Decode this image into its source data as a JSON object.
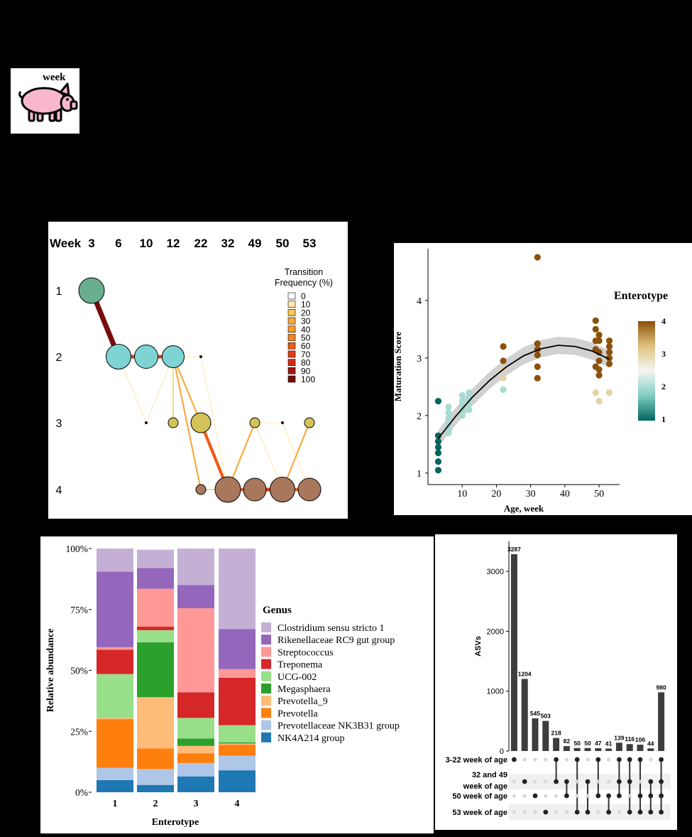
{
  "pig_panel": {
    "label": "week",
    "icon": "pig-icon",
    "fill": "#F9B7CF"
  },
  "chart_data": [
    {
      "type": "network",
      "panel": "enterotype-transition",
      "x_header": "Week",
      "weeks": [
        "3",
        "6",
        "10",
        "12",
        "22",
        "32",
        "49",
        "50",
        "53"
      ],
      "enterotypes": [
        "1",
        "2",
        "3",
        "4"
      ],
      "legend_title": [
        "Transition",
        "Frequency (%)"
      ],
      "legend_levels": [
        "0",
        "10",
        "20",
        "30",
        "40",
        "50",
        "60",
        "70",
        "80",
        "90",
        "100"
      ],
      "legend_colors": [
        "#FFFFFF",
        "#FEE8A9",
        "#FDC94F",
        "#F9A83D",
        "#F89B2A",
        "#F5851F",
        "#EE5A17",
        "#E33D15",
        "#D42A11",
        "#A51510",
        "#7A0B0B"
      ],
      "nodes": [
        {
          "week": "3",
          "enterotype": 1,
          "size": 36
        },
        {
          "week": "6",
          "enterotype": 2,
          "size": 35
        },
        {
          "week": "10",
          "enterotype": 2,
          "size": 33
        },
        {
          "week": "10",
          "enterotype": 3,
          "size": 3
        },
        {
          "week": "12",
          "enterotype": 2,
          "size": 31
        },
        {
          "week": "12",
          "enterotype": 3,
          "size": 14
        },
        {
          "week": "22",
          "enterotype": 2,
          "size": 3
        },
        {
          "week": "22",
          "enterotype": 3,
          "size": 28
        },
        {
          "week": "22",
          "enterotype": 4,
          "size": 14
        },
        {
          "week": "32",
          "enterotype": 4,
          "size": 36
        },
        {
          "week": "49",
          "enterotype": 3,
          "size": 14
        },
        {
          "week": "49",
          "enterotype": 4,
          "size": 32
        },
        {
          "week": "50",
          "enterotype": 3,
          "size": 3
        },
        {
          "week": "50",
          "enterotype": 4,
          "size": 35
        },
        {
          "week": "53",
          "enterotype": 3,
          "size": 14
        },
        {
          "week": "53",
          "enterotype": 4,
          "size": 32
        }
      ],
      "node_colors": {
        "1": "#6AAE90",
        "2": "#7DD4D2",
        "3": "#D3C257",
        "4": "#A8775C"
      },
      "edges": [
        {
          "from": [
            "3",
            1
          ],
          "to": [
            "6",
            2
          ],
          "freq": 100
        },
        {
          "from": [
            "6",
            2
          ],
          "to": [
            "10",
            2
          ],
          "freq": 70
        },
        {
          "from": [
            "6",
            2
          ],
          "to": [
            "10",
            3
          ],
          "freq": 10
        },
        {
          "from": [
            "10",
            2
          ],
          "to": [
            "12",
            2
          ],
          "freq": 70
        },
        {
          "from": [
            "10",
            3
          ],
          "to": [
            "12",
            2
          ],
          "freq": 10
        },
        {
          "from": [
            "12",
            2
          ],
          "to": [
            "22",
            3
          ],
          "freq": 30
        },
        {
          "from": [
            "12",
            2
          ],
          "to": [
            "22",
            4
          ],
          "freq": 30
        },
        {
          "from": [
            "12",
            2
          ],
          "to": [
            "22",
            2
          ],
          "freq": 10
        },
        {
          "from": [
            "12",
            2
          ],
          "to": [
            "12",
            3
          ],
          "freq": 20
        },
        {
          "from": [
            "22",
            2
          ],
          "to": [
            "32",
            4
          ],
          "freq": 10
        },
        {
          "from": [
            "22",
            3
          ],
          "to": [
            "32",
            4
          ],
          "freq": 60
        },
        {
          "from": [
            "22",
            4
          ],
          "to": [
            "32",
            4
          ],
          "freq": 20
        },
        {
          "from": [
            "32",
            4
          ],
          "to": [
            "49",
            3
          ],
          "freq": 30
        },
        {
          "from": [
            "32",
            4
          ],
          "to": [
            "49",
            4
          ],
          "freq": 60
        },
        {
          "from": [
            "49",
            3
          ],
          "to": [
            "50",
            4
          ],
          "freq": 10
        },
        {
          "from": [
            "49",
            3
          ],
          "to": [
            "50",
            3
          ],
          "freq": 10
        },
        {
          "from": [
            "49",
            4
          ],
          "to": [
            "50",
            4
          ],
          "freq": 70
        },
        {
          "from": [
            "50",
            3
          ],
          "to": [
            "53",
            4
          ],
          "freq": 10
        },
        {
          "from": [
            "50",
            4
          ],
          "to": [
            "53",
            3
          ],
          "freq": 30
        },
        {
          "from": [
            "50",
            4
          ],
          "to": [
            "53",
            4
          ],
          "freq": 60
        }
      ]
    },
    {
      "type": "scatter",
      "panel": "maturation",
      "xlabel": "Age, week",
      "ylabel": "Maturation Score",
      "xlim": [
        0,
        56
      ],
      "ylim": [
        0.8,
        4.9
      ],
      "xticks": [
        10,
        20,
        30,
        40,
        50
      ],
      "yticks": [
        1,
        2,
        3,
        4
      ],
      "legend_title": "Enterotype",
      "legend_ticks": [
        "4",
        "3",
        "2",
        "1"
      ],
      "colorscale": [
        "#01665E",
        "#80CDC1",
        "#F5F5F5",
        "#DFC27D",
        "#8C510A"
      ],
      "points": [
        {
          "x": 3,
          "y": 2.25,
          "e": 1
        },
        {
          "x": 3,
          "y": 1.65,
          "e": 1
        },
        {
          "x": 3,
          "y": 1.55,
          "e": 1
        },
        {
          "x": 3,
          "y": 1.45,
          "e": 1
        },
        {
          "x": 3,
          "y": 1.35,
          "e": 1
        },
        {
          "x": 3,
          "y": 1.2,
          "e": 1
        },
        {
          "x": 3,
          "y": 1.05,
          "e": 1
        },
        {
          "x": 6,
          "y": 2.15,
          "e": 2
        },
        {
          "x": 6,
          "y": 2.05,
          "e": 2
        },
        {
          "x": 6,
          "y": 1.95,
          "e": 2
        },
        {
          "x": 6,
          "y": 1.85,
          "e": 2
        },
        {
          "x": 6,
          "y": 1.75,
          "e": 2
        },
        {
          "x": 6,
          "y": 1.7,
          "e": 2
        },
        {
          "x": 10,
          "y": 2.35,
          "e": 2
        },
        {
          "x": 10,
          "y": 2.25,
          "e": 2
        },
        {
          "x": 10,
          "y": 2.15,
          "e": 2
        },
        {
          "x": 10,
          "y": 2.05,
          "e": 2
        },
        {
          "x": 10,
          "y": 2.0,
          "e": 2
        },
        {
          "x": 12,
          "y": 2.4,
          "e": 2
        },
        {
          "x": 12,
          "y": 2.3,
          "e": 2
        },
        {
          "x": 12,
          "y": 2.2,
          "e": 2
        },
        {
          "x": 12,
          "y": 2.1,
          "e": 2
        },
        {
          "x": 22,
          "y": 3.2,
          "e": 4
        },
        {
          "x": 22,
          "y": 2.95,
          "e": 4
        },
        {
          "x": 22,
          "y": 2.8,
          "e": 3
        },
        {
          "x": 22,
          "y": 2.65,
          "e": 3
        },
        {
          "x": 22,
          "y": 2.45,
          "e": 2
        },
        {
          "x": 32,
          "y": 4.75,
          "e": 4
        },
        {
          "x": 32,
          "y": 3.25,
          "e": 4
        },
        {
          "x": 32,
          "y": 3.15,
          "e": 4
        },
        {
          "x": 32,
          "y": 3.05,
          "e": 4
        },
        {
          "x": 32,
          "y": 2.85,
          "e": 4
        },
        {
          "x": 32,
          "y": 2.65,
          "e": 4
        },
        {
          "x": 49,
          "y": 3.65,
          "e": 4
        },
        {
          "x": 49,
          "y": 3.5,
          "e": 4
        },
        {
          "x": 49,
          "y": 3.3,
          "e": 4
        },
        {
          "x": 49,
          "y": 3.15,
          "e": 4
        },
        {
          "x": 49,
          "y": 2.85,
          "e": 4
        },
        {
          "x": 49,
          "y": 2.4,
          "e": 3
        },
        {
          "x": 50,
          "y": 3.4,
          "e": 4
        },
        {
          "x": 50,
          "y": 3.3,
          "e": 4
        },
        {
          "x": 50,
          "y": 3.1,
          "e": 4
        },
        {
          "x": 50,
          "y": 2.95,
          "e": 4
        },
        {
          "x": 50,
          "y": 2.8,
          "e": 4
        },
        {
          "x": 50,
          "y": 2.7,
          "e": 4
        },
        {
          "x": 50,
          "y": 2.25,
          "e": 3
        },
        {
          "x": 53,
          "y": 3.3,
          "e": 4
        },
        {
          "x": 53,
          "y": 3.2,
          "e": 4
        },
        {
          "x": 53,
          "y": 3.1,
          "e": 4
        },
        {
          "x": 53,
          "y": 3.0,
          "e": 4
        },
        {
          "x": 53,
          "y": 2.9,
          "e": 4
        },
        {
          "x": 53,
          "y": 2.4,
          "e": 3
        }
      ],
      "fit_curve": [
        [
          3,
          1.6
        ],
        [
          8,
          1.98
        ],
        [
          13,
          2.32
        ],
        [
          18,
          2.61
        ],
        [
          23,
          2.85
        ],
        [
          28,
          3.04
        ],
        [
          33,
          3.16
        ],
        [
          38,
          3.22
        ],
        [
          43,
          3.2
        ],
        [
          48,
          3.12
        ],
        [
          53,
          2.98
        ]
      ]
    },
    {
      "type": "bar",
      "panel": "genus-composition",
      "stacked": true,
      "xlabel": "Enterotype",
      "ylabel": "Relative abundance",
      "categories": [
        "1",
        "2",
        "3",
        "4"
      ],
      "yticks": [
        "0%",
        "25%",
        "50%",
        "75%",
        "100%"
      ],
      "legend_title": "Genus",
      "series": [
        {
          "name": "NK4A214 group",
          "color": "#1F77B4",
          "values": [
            5,
            3,
            6.5,
            9
          ]
        },
        {
          "name": "Prevotellaceae  NK3B31 group",
          "color": "#AEC7E8",
          "values": [
            5,
            6.5,
            5.5,
            6
          ]
        },
        {
          "name": "Prevotella",
          "color": "#FF7F0E",
          "values": [
            20,
            8.5,
            4,
            4.5
          ]
        },
        {
          "name": "Prevotella_9",
          "color": "#FFBB78",
          "values": [
            0.5,
            21,
            3,
            0.5
          ]
        },
        {
          "name": "Megasphaera",
          "color": "#2CA02C",
          "values": [
            0,
            22.5,
            3,
            0.5
          ]
        },
        {
          "name": "UCG-002",
          "color": "#98DF8A",
          "values": [
            18,
            5,
            8.5,
            7
          ]
        },
        {
          "name": "Treponema",
          "color": "#D62728",
          "values": [
            10,
            1.5,
            10.5,
            19.5
          ]
        },
        {
          "name": "Streptococcus",
          "color": "#FF9896",
          "values": [
            1,
            15.5,
            34.5,
            3.5
          ]
        },
        {
          "name": "Rikenellaceae RC9 gut group",
          "color": "#9467BD",
          "values": [
            31,
            8.5,
            9.5,
            16.5
          ]
        },
        {
          "name": "Clostridium sensu stricto 1",
          "color": "#C5B0D5",
          "values": [
            9.5,
            7.5,
            15,
            33
          ]
        }
      ]
    },
    {
      "type": "bar",
      "panel": "upset",
      "ylabel": "ASVs",
      "ylim": [
        0,
        3500
      ],
      "yticks": [
        0,
        1000,
        2000,
        3000
      ],
      "values": [
        3287,
        1204,
        545,
        503,
        218,
        82,
        50,
        50,
        47,
        41,
        139,
        116,
        106,
        44,
        980
      ],
      "sets": [
        "3-22 week of age",
        "32 and 49 week of age",
        "50 week of age",
        "53 week of age"
      ],
      "set_labels": [
        [
          "3-22 week of age"
        ],
        [
          "32 and 49",
          "week of age"
        ],
        [
          "50 week of age"
        ],
        [
          "53 week of age"
        ]
      ],
      "membership": [
        [
          0
        ],
        [
          1
        ],
        [
          2
        ],
        [
          3
        ],
        [
          0,
          1
        ],
        [
          1,
          2
        ],
        [
          0,
          3
        ],
        [
          1,
          3
        ],
        [
          0,
          2
        ],
        [
          2,
          3
        ],
        [
          0,
          1,
          2
        ],
        [
          0,
          1,
          3
        ],
        [
          0,
          2,
          3
        ],
        [
          1,
          2,
          3
        ],
        [
          0,
          1,
          2,
          3
        ]
      ]
    }
  ]
}
